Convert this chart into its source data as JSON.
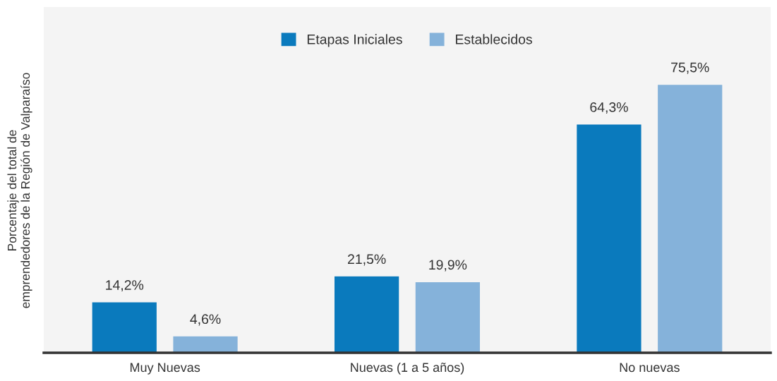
{
  "chart_data": {
    "type": "bar",
    "ylabel": "Porcentaje del total de\nemprendedores de la Región de Valparaíso",
    "categories": [
      "Muy Nuevas",
      "Nuevas (1 a 5 años)",
      "No nuevas"
    ],
    "series": [
      {
        "name": "Etapas Iniciales",
        "color": "#0a7abd",
        "values": [
          14.2,
          21.5,
          64.3
        ],
        "value_labels": [
          "14,2%",
          "21,5%",
          "64,3%"
        ]
      },
      {
        "name": "Establecidos",
        "color": "#85b2da",
        "values": [
          4.6,
          19.9,
          75.5
        ],
        "value_labels": [
          "4,6%",
          "19,9%",
          "75,5%"
        ]
      }
    ],
    "legend": "top",
    "grid": false
  }
}
